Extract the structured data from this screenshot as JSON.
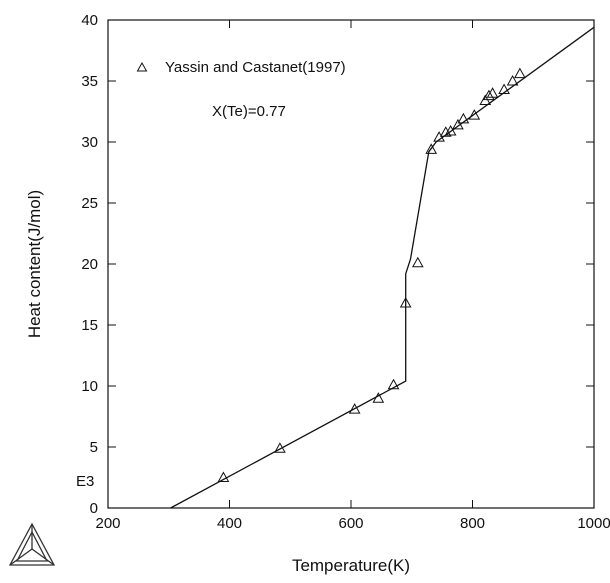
{
  "chart_data": {
    "type": "scatter",
    "xlabel": "Temperature(K)",
    "ylabel": "Heat content(J/mol)",
    "xlim": [
      200,
      1000
    ],
    "ylim": [
      0,
      40
    ],
    "x_ticks": [
      "200",
      "400",
      "600",
      "800",
      "1000"
    ],
    "y_ticks": [
      "0",
      "5",
      "10",
      "15",
      "20",
      "25",
      "30",
      "35",
      "40"
    ],
    "corner_label": "E3",
    "legend": {
      "label": "Yassin and Castanet(1997)",
      "marker": "triangle",
      "placement": "top-left"
    },
    "annotation": "X(Te)=0.77",
    "series": [
      {
        "name": "Yassin and Castanet(1997)",
        "kind": "points",
        "points": [
          [
            390,
            2.5
          ],
          [
            483,
            4.9
          ],
          [
            606,
            8.1
          ],
          [
            645,
            9.0
          ],
          [
            670,
            10.1
          ],
          [
            690,
            16.8
          ],
          [
            710,
            20.1
          ],
          [
            732,
            29.4
          ],
          [
            745,
            30.4
          ],
          [
            756,
            30.8
          ],
          [
            764,
            30.9
          ],
          [
            776,
            31.4
          ],
          [
            785,
            31.9
          ],
          [
            803,
            32.2
          ],
          [
            821,
            33.4
          ],
          [
            827,
            33.8
          ],
          [
            833,
            34.0
          ],
          [
            852,
            34.3
          ],
          [
            866,
            35.0
          ],
          [
            878,
            35.6
          ]
        ]
      },
      {
        "kind": "line",
        "points": [
          [
            303,
            0
          ],
          [
            690,
            10.4
          ],
          [
            690,
            19.2
          ],
          [
            698,
            20.4
          ],
          [
            728,
            29.2
          ],
          [
            740,
            30.0
          ],
          [
            1000,
            39.4
          ]
        ]
      }
    ],
    "colors": {
      "line": "#111111",
      "marker": "#111111",
      "axis": "#111111"
    },
    "logo": "thermo-calc-triangle-icon"
  }
}
